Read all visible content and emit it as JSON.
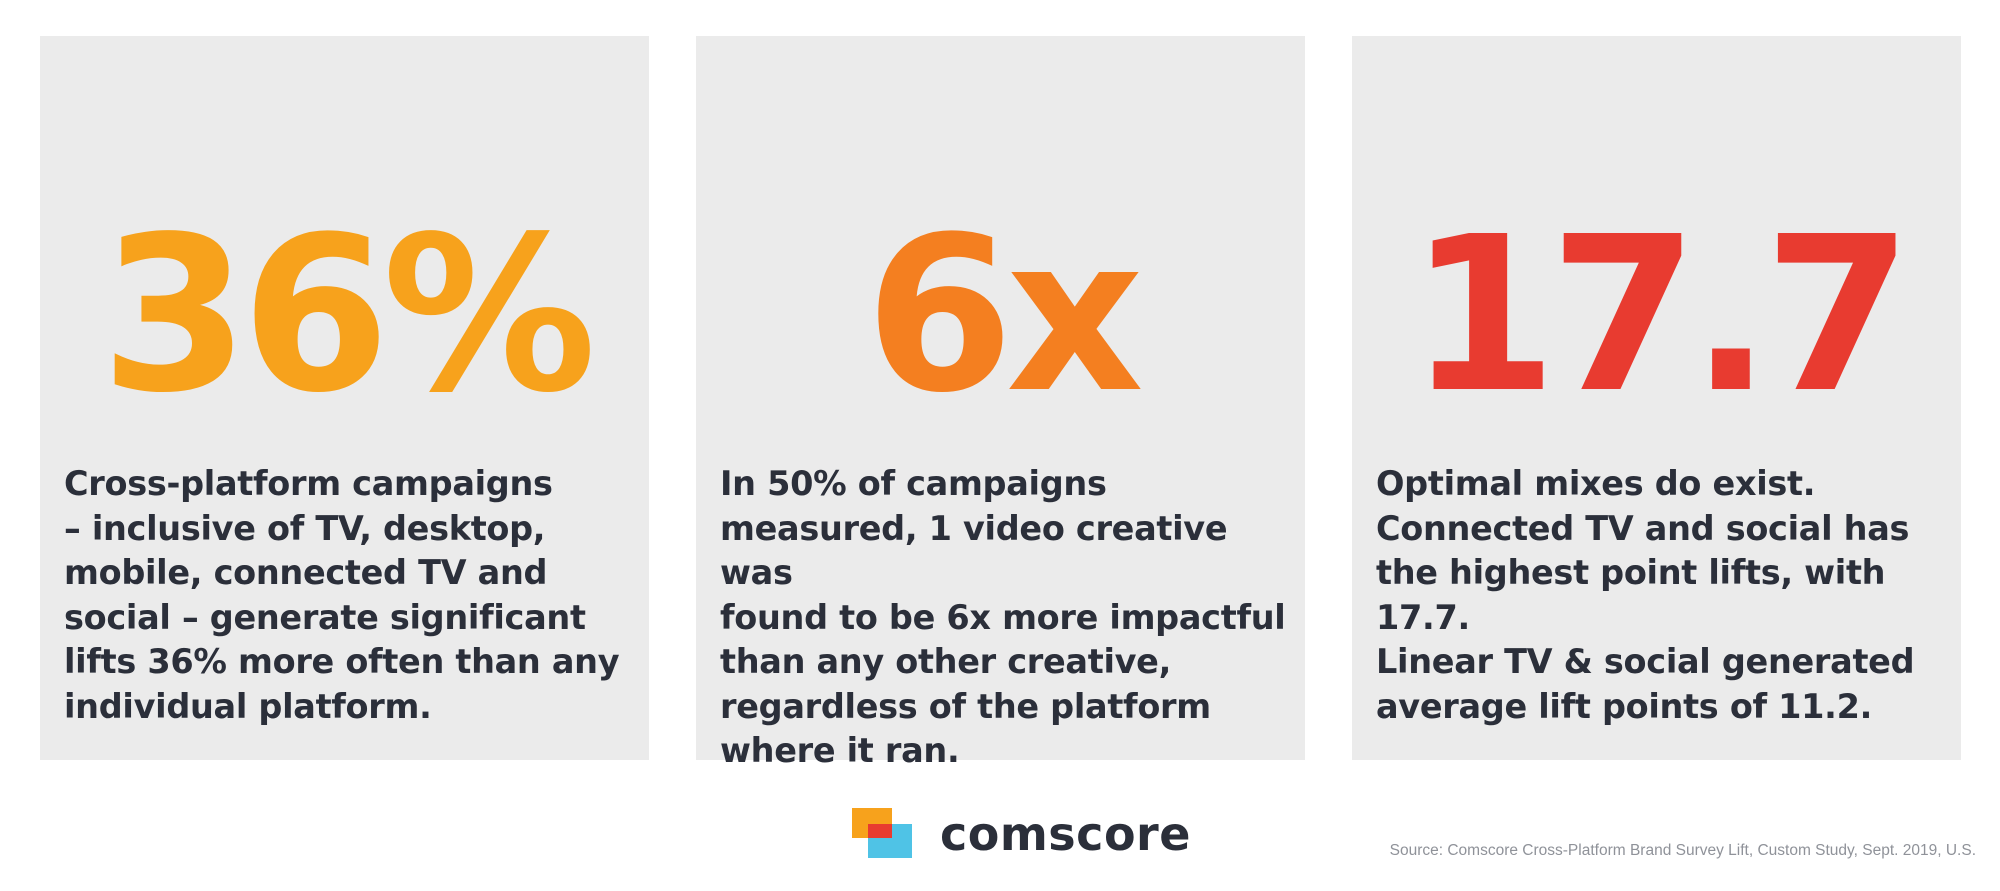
{
  "stats": [
    {
      "value": "36%",
      "color": "#f7a21c",
      "description": "Cross-platform campaigns\n– inclusive of TV, desktop,\nmobile, connected TV and\nsocial – generate significant\nlifts 36% more often than any\nindividual platform."
    },
    {
      "value": "6x",
      "color": "#f47f20",
      "description": "In 50% of campaigns\nmeasured, 1 video creative was\nfound to be 6x more impactful\nthan any other creative,\nregardless of the platform\nwhere it ran."
    },
    {
      "value": "17.7",
      "color": "#e83b30",
      "description": "Optimal mixes do exist.\nConnected TV and social has\nthe highest point lifts, with 17.7.\nLinear TV & social generated\naverage lift points of 11.2."
    }
  ],
  "brand": {
    "name": "comscore",
    "colors": {
      "orange": "#f7a21c",
      "blue": "#4fc3e6",
      "red": "#e83b30"
    }
  },
  "source": "Source: Comscore Cross-Platform Brand Survey Lift, Custom Study, Sept. 2019, U.S."
}
